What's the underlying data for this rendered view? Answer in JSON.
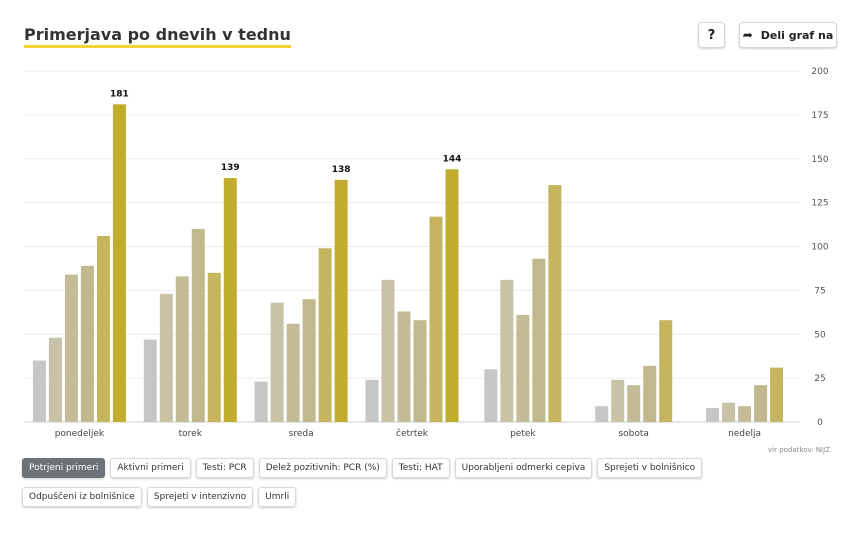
{
  "header": {
    "title": "Primerjava po dnevih v tednu",
    "help_label": "?",
    "share_label": "Deli graf na",
    "share_icon": "share-arrow-icon"
  },
  "source_text": "vir podatkov: NIJZ",
  "tabs": [
    {
      "label": "Potrjeni primeri",
      "active": true
    },
    {
      "label": "Aktivni primeri",
      "active": false
    },
    {
      "label": "Testi: PCR",
      "active": false
    },
    {
      "label": "Delež pozitivnih: PCR (%)",
      "active": false
    },
    {
      "label": "Testi: HAT",
      "active": false
    },
    {
      "label": "Uporabljeni odmerki cepiva",
      "active": false
    },
    {
      "label": "Sprejeti v bolnišnico",
      "active": false
    },
    {
      "label": "Odpuščeni iz bolnišnice",
      "active": false
    },
    {
      "label": "Sprejeti v intenzivno",
      "active": false
    },
    {
      "label": "Umrli",
      "active": false
    }
  ],
  "chart_data": {
    "type": "bar",
    "title": "Primerjava po dnevih v tednu",
    "xlabel": "",
    "ylabel": "",
    "ylim": [
      0,
      200
    ],
    "yticks": [
      0,
      25,
      50,
      75,
      100,
      125,
      150,
      175,
      200
    ],
    "y_axis_position": "right",
    "grid": true,
    "legend": "none",
    "categories": [
      "ponedeljek",
      "torek",
      "sreda",
      "četrtek",
      "petek",
      "sobota",
      "nedelja"
    ],
    "series_colors": [
      "#c6c6c6",
      "#c8c2a6",
      "#c4bb98",
      "#c2b88d",
      "#c6b55f",
      "#c2ac2e"
    ],
    "series": [
      {
        "values": [
          35,
          47,
          23,
          24,
          30,
          9,
          8
        ]
      },
      {
        "values": [
          48,
          73,
          68,
          81,
          81,
          24,
          11
        ]
      },
      {
        "values": [
          84,
          83,
          56,
          63,
          61,
          21,
          9
        ]
      },
      {
        "values": [
          89,
          110,
          70,
          58,
          93,
          32,
          21
        ]
      },
      {
        "values": [
          106,
          85,
          99,
          117,
          135,
          58,
          31
        ]
      },
      {
        "values": [
          181,
          139,
          138,
          144,
          null,
          null,
          null
        ]
      }
    ],
    "data_labels": [
      {
        "category": "ponedeljek",
        "value": 181
      },
      {
        "category": "torek",
        "value": 139
      },
      {
        "category": "sreda",
        "value": 138
      },
      {
        "category": "četrtek",
        "value": 144
      }
    ]
  }
}
